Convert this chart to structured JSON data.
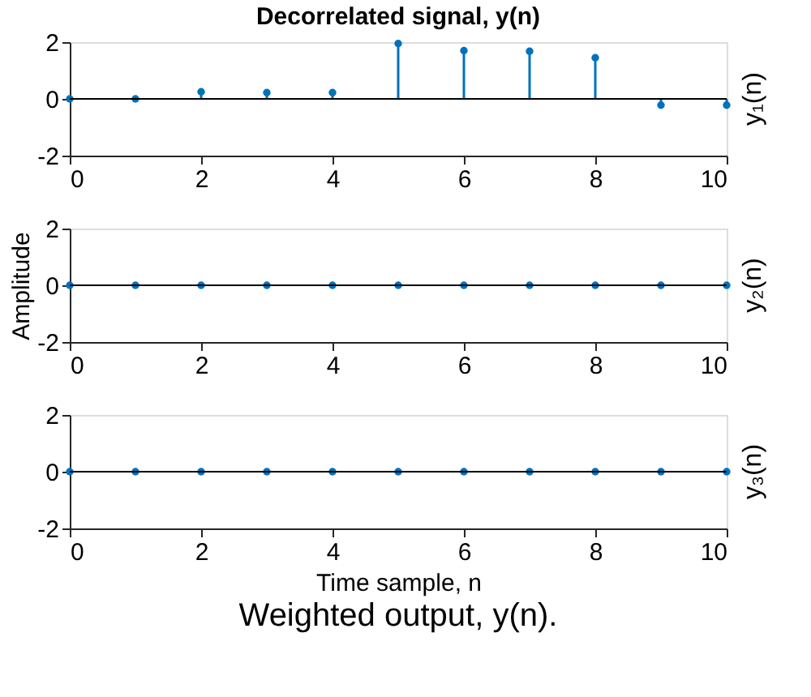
{
  "chart_data": [
    {
      "type": "lollipop",
      "title": "Decorrelated signal, y(n)",
      "y2label": "y₁(n)",
      "x": [
        0,
        1,
        2,
        3,
        4,
        5,
        6,
        7,
        8,
        9,
        10
      ],
      "series": [
        {
          "color": "#0072bd",
          "values": [
            0,
            0,
            0.25,
            0.22,
            0.22,
            1.95,
            1.7,
            1.68,
            1.45,
            -0.22,
            -0.22
          ]
        }
      ],
      "xlim": [
        0,
        10
      ],
      "xticks": [
        0,
        2,
        4,
        6,
        8,
        10
      ],
      "ylim": [
        -2,
        2
      ],
      "yticks": [
        -2,
        0,
        2
      ],
      "marker": "circle",
      "grid": false,
      "ref_lines": [
        {
          "axis": "y",
          "value": 0,
          "color": "#000000"
        }
      ]
    },
    {
      "type": "lollipop",
      "ylabel": "Amplitude",
      "y2label": "y₂(n)",
      "x": [
        0,
        1,
        2,
        3,
        4,
        5,
        6,
        7,
        8,
        9,
        10
      ],
      "series": [
        {
          "color": "#0072bd",
          "values": [
            0,
            0,
            0,
            0,
            0,
            0,
            0,
            0,
            0,
            0,
            0
          ]
        }
      ],
      "xlim": [
        0,
        10
      ],
      "xticks": [
        0,
        2,
        4,
        6,
        8,
        10
      ],
      "ylim": [
        -2,
        2
      ],
      "yticks": [
        -2,
        0,
        2
      ],
      "marker": "circle",
      "grid": false,
      "ref_lines": [
        {
          "axis": "y",
          "value": 0,
          "color": "#000000"
        }
      ]
    },
    {
      "type": "lollipop",
      "xlabel": "Time sample, n",
      "y2label": "y₃(n)",
      "x": [
        0,
        1,
        2,
        3,
        4,
        5,
        6,
        7,
        8,
        9,
        10
      ],
      "series": [
        {
          "color": "#0072bd",
          "values": [
            0,
            0,
            0,
            0,
            0,
            0,
            0,
            0,
            0,
            0,
            0
          ]
        }
      ],
      "xlim": [
        0,
        10
      ],
      "xticks": [
        0,
        2,
        4,
        6,
        8,
        10
      ],
      "ylim": [
        -2,
        2
      ],
      "yticks": [
        -2,
        0,
        2
      ],
      "marker": "circle",
      "grid": false,
      "ref_lines": [
        {
          "axis": "y",
          "value": 0,
          "color": "#000000"
        }
      ],
      "annotations": [
        "Weighted output, y(n)."
      ]
    }
  ]
}
